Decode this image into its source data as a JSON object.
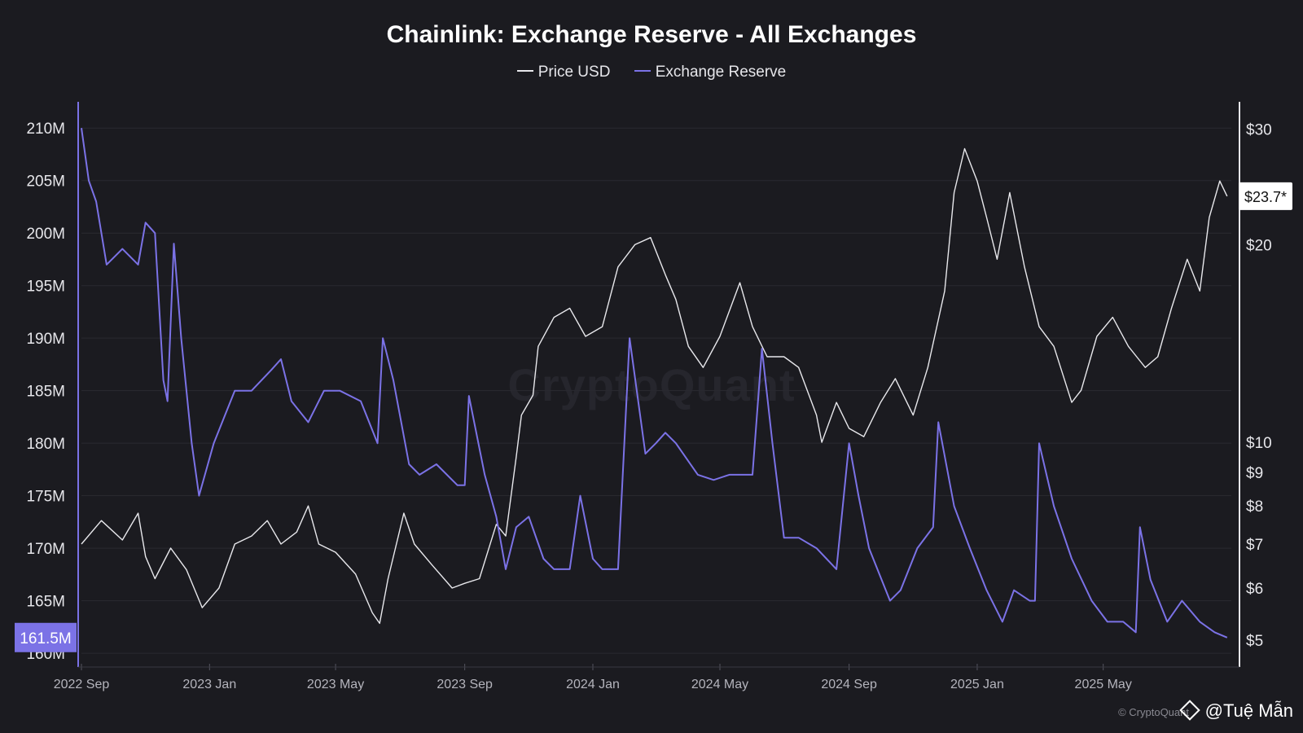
{
  "chart_data": {
    "type": "line",
    "title": "Chainlink: Exchange Reserve - All Exchanges",
    "watermark": "CryptoQuant",
    "source": "© CryptoQuant",
    "credit": "@Tuệ Mẫn",
    "x_ticks": [
      "2022 Sep",
      "2023 Jan",
      "2023 May",
      "2023 Sep",
      "2024 Jan",
      "2024 May",
      "2024 Sep",
      "2025 Jan",
      "2025 May"
    ],
    "left_axis": {
      "ticks": [
        "160M",
        "165M",
        "170M",
        "175M",
        "180M",
        "185M",
        "190M",
        "195M",
        "200M",
        "205M",
        "210M"
      ],
      "ylim": [
        160,
        210
      ],
      "unit": "M"
    },
    "right_axis": {
      "scale": "log",
      "ticks": [
        "$5",
        "$6",
        "$7",
        "$8",
        "$9",
        "$10",
        "$20",
        "$30"
      ],
      "ylim": [
        4.8,
        30
      ]
    },
    "current_reserve_label": "161.5M",
    "current_price_label": "$23.7*",
    "colors": {
      "price": "#e8e8ec",
      "reserve": "#7b72e6",
      "background": "#1b1b20",
      "grid": "#2a2a31"
    },
    "grid": true,
    "legend_position": "top-center",
    "series": [
      {
        "name": "Price USD",
        "axis": "right",
        "x": [
          "2022-09-01",
          "2022-09-20",
          "2022-10-10",
          "2022-10-25",
          "2022-11-01",
          "2022-11-10",
          "2022-11-25",
          "2022-12-10",
          "2022-12-25",
          "2023-01-10",
          "2023-01-25",
          "2023-02-10",
          "2023-02-25",
          "2023-03-10",
          "2023-03-25",
          "2023-04-05",
          "2023-04-15",
          "2023-05-01",
          "2023-05-20",
          "2023-06-05",
          "2023-06-12",
          "2023-06-20",
          "2023-07-05",
          "2023-07-15",
          "2023-08-01",
          "2023-08-20",
          "2023-09-01",
          "2023-09-15",
          "2023-10-01",
          "2023-10-10",
          "2023-10-20",
          "2023-10-25",
          "2023-11-05",
          "2023-11-10",
          "2023-11-25",
          "2023-12-10",
          "2023-12-25",
          "2024-01-10",
          "2024-01-25",
          "2024-02-10",
          "2024-02-25",
          "2024-03-10",
          "2024-03-20",
          "2024-04-01",
          "2024-04-15",
          "2024-05-01",
          "2024-05-20",
          "2024-06-01",
          "2024-06-15",
          "2024-07-01",
          "2024-07-15",
          "2024-08-01",
          "2024-08-06",
          "2024-08-20",
          "2024-09-01",
          "2024-09-15",
          "2024-10-01",
          "2024-10-15",
          "2024-11-01",
          "2024-11-15",
          "2024-12-01",
          "2024-12-10",
          "2024-12-20",
          "2025-01-01",
          "2025-01-10",
          "2025-01-20",
          "2025-02-01",
          "2025-02-15",
          "2025-03-01",
          "2025-03-15",
          "2025-04-01",
          "2025-04-10",
          "2025-04-25",
          "2025-05-10",
          "2025-05-25",
          "2025-06-10",
          "2025-06-22",
          "2025-07-05",
          "2025-07-20",
          "2025-08-01",
          "2025-08-10",
          "2025-08-20",
          "2025-08-27"
        ],
        "values": [
          7.0,
          7.6,
          7.1,
          7.8,
          6.7,
          6.2,
          6.9,
          6.4,
          5.6,
          6.0,
          7.0,
          7.2,
          7.6,
          7.0,
          7.3,
          8.0,
          7.0,
          6.8,
          6.3,
          5.5,
          5.3,
          6.2,
          7.8,
          7.0,
          6.5,
          6.0,
          6.1,
          6.2,
          7.5,
          7.2,
          9.5,
          11.0,
          11.8,
          14.0,
          15.5,
          16.0,
          14.5,
          15.0,
          18.5,
          20.0,
          20.5,
          18.0,
          16.5,
          14.0,
          13.0,
          14.5,
          17.5,
          15.0,
          13.5,
          13.5,
          13.0,
          11.0,
          10.0,
          11.5,
          10.5,
          10.2,
          11.5,
          12.5,
          11.0,
          13.0,
          17.0,
          24.0,
          28.0,
          25.0,
          22.0,
          19.0,
          24.0,
          18.5,
          15.0,
          14.0,
          11.5,
          12.0,
          14.5,
          15.5,
          14.0,
          13.0,
          13.5,
          16.0,
          19.0,
          17.0,
          22.0,
          25.0,
          23.7
        ]
      },
      {
        "name": "Exchange Reserve",
        "axis": "left",
        "x": [
          "2022-09-01",
          "2022-09-08",
          "2022-09-15",
          "2022-09-25",
          "2022-10-10",
          "2022-10-25",
          "2022-11-01",
          "2022-11-10",
          "2022-11-18",
          "2022-11-22",
          "2022-11-28",
          "2022-12-05",
          "2022-12-15",
          "2022-12-22",
          "2023-01-05",
          "2023-01-25",
          "2023-02-10",
          "2023-03-01",
          "2023-03-10",
          "2023-03-20",
          "2023-04-05",
          "2023-04-20",
          "2023-05-05",
          "2023-05-25",
          "2023-06-10",
          "2023-06-15",
          "2023-06-25",
          "2023-07-10",
          "2023-07-20",
          "2023-08-05",
          "2023-08-25",
          "2023-09-01",
          "2023-09-05",
          "2023-09-20",
          "2023-10-01",
          "2023-10-10",
          "2023-10-20",
          "2023-11-01",
          "2023-11-15",
          "2023-11-25",
          "2023-12-10",
          "2023-12-20",
          "2024-01-01",
          "2024-01-10",
          "2024-01-25",
          "2024-02-05",
          "2024-02-20",
          "2024-03-01",
          "2024-03-10",
          "2024-03-20",
          "2024-04-10",
          "2024-04-25",
          "2024-05-10",
          "2024-05-25",
          "2024-06-01",
          "2024-06-10",
          "2024-06-20",
          "2024-07-01",
          "2024-07-15",
          "2024-08-01",
          "2024-08-20",
          "2024-09-01",
          "2024-09-10",
          "2024-09-20",
          "2024-10-10",
          "2024-10-20",
          "2024-11-05",
          "2024-11-20",
          "2024-11-25",
          "2024-12-10",
          "2024-12-25",
          "2025-01-10",
          "2025-01-25",
          "2025-02-05",
          "2025-02-20",
          "2025-02-25",
          "2025-03-01",
          "2025-03-15",
          "2025-04-01",
          "2025-04-20",
          "2025-05-05",
          "2025-05-20",
          "2025-06-01",
          "2025-06-05",
          "2025-06-15",
          "2025-07-01",
          "2025-07-15",
          "2025-08-01",
          "2025-08-15",
          "2025-08-27"
        ],
        "values": [
          210,
          205,
          203,
          197,
          198.5,
          197,
          201,
          200,
          186,
          184,
          199,
          190,
          180,
          175,
          180,
          185,
          185,
          187,
          188,
          184,
          182,
          185,
          185,
          184,
          180,
          190,
          186,
          178,
          177,
          178,
          176,
          176,
          184.5,
          177,
          173,
          168,
          172,
          173,
          169,
          168,
          168,
          175,
          169,
          168,
          168,
          190,
          179,
          180,
          181,
          180,
          177,
          176.5,
          177,
          177,
          177,
          189,
          180,
          171,
          171,
          170,
          168,
          180,
          175,
          170,
          165,
          166,
          170,
          172,
          182,
          174,
          170,
          166,
          163,
          166,
          165,
          165,
          180,
          174,
          169,
          165,
          163,
          163,
          162,
          172,
          167,
          163,
          165,
          163,
          162,
          161.5
        ]
      }
    ]
  }
}
